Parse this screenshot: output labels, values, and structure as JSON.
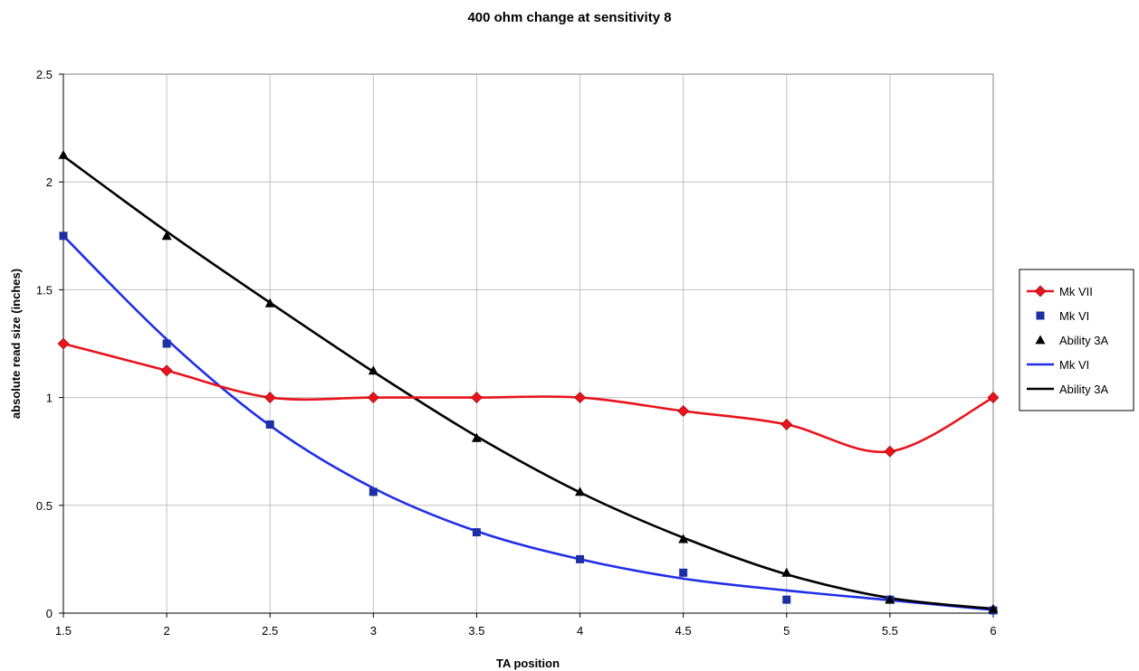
{
  "chart_data": {
    "type": "line",
    "title": "400 ohm change at sensitivity 8",
    "xlabel": "TA position",
    "ylabel": "absolute read size (inches)",
    "xlim": [
      1.5,
      6
    ],
    "ylim": [
      0,
      2.5
    ],
    "x_ticks": [
      "1.5",
      "2",
      "2.5",
      "3",
      "3.5",
      "4",
      "4.5",
      "5",
      "5.5",
      "6"
    ],
    "y_ticks": [
      "0",
      "0.5",
      "1",
      "1.5",
      "2",
      "2.5"
    ],
    "grid": "vertical and horizontal",
    "legend_position": "right",
    "series": [
      {
        "name": "Mk VII",
        "style": "smooth-line-with-markers",
        "marker": "diamond",
        "color": "#e8141c",
        "marker_color": "#e8141c",
        "x": [
          1.5,
          2,
          2.5,
          3,
          3.5,
          4,
          4.5,
          5,
          5.5,
          6
        ],
        "y": [
          1.25,
          1.125,
          1.0,
          1.0,
          1.0,
          1.0,
          0.9375,
          0.875,
          0.75,
          1.0
        ]
      },
      {
        "name": "Mk VI",
        "style": "markers-only",
        "marker": "square",
        "color": "#1c2fa5",
        "x": [
          1.5,
          2,
          2.5,
          3,
          3.5,
          4,
          4.5,
          5,
          5.5,
          6
        ],
        "y": [
          1.75,
          1.25,
          0.875,
          0.5625,
          0.375,
          0.25,
          0.1875,
          0.0625,
          0.0625,
          0.0125
        ]
      },
      {
        "name": "Ability 3A",
        "style": "markers-only",
        "marker": "triangle",
        "color": "#000000",
        "x": [
          1.5,
          2,
          2.5,
          3,
          3.5,
          4,
          4.5,
          5,
          5.5,
          6
        ],
        "y": [
          2.125,
          1.75,
          1.4375,
          1.125,
          0.8125,
          0.5625,
          0.34375,
          0.1875,
          0.0625,
          0.02
        ]
      },
      {
        "name": "Mk VI",
        "style": "trend-line",
        "color": "#1f2ee6",
        "x": [
          1.5,
          2,
          2.5,
          3,
          3.5,
          4,
          4.5,
          5,
          5.5,
          6
        ],
        "y": [
          1.75,
          1.27,
          0.87,
          0.58,
          0.38,
          0.25,
          0.16,
          0.105,
          0.06,
          0.015
        ]
      },
      {
        "name": "Ability 3A",
        "style": "trend-line",
        "color": "#000000",
        "x": [
          1.5,
          2,
          2.5,
          3,
          3.5,
          4,
          4.5,
          5,
          5.5,
          6
        ],
        "y": [
          2.12,
          1.77,
          1.44,
          1.12,
          0.82,
          0.56,
          0.35,
          0.18,
          0.07,
          0.02
        ]
      }
    ]
  }
}
